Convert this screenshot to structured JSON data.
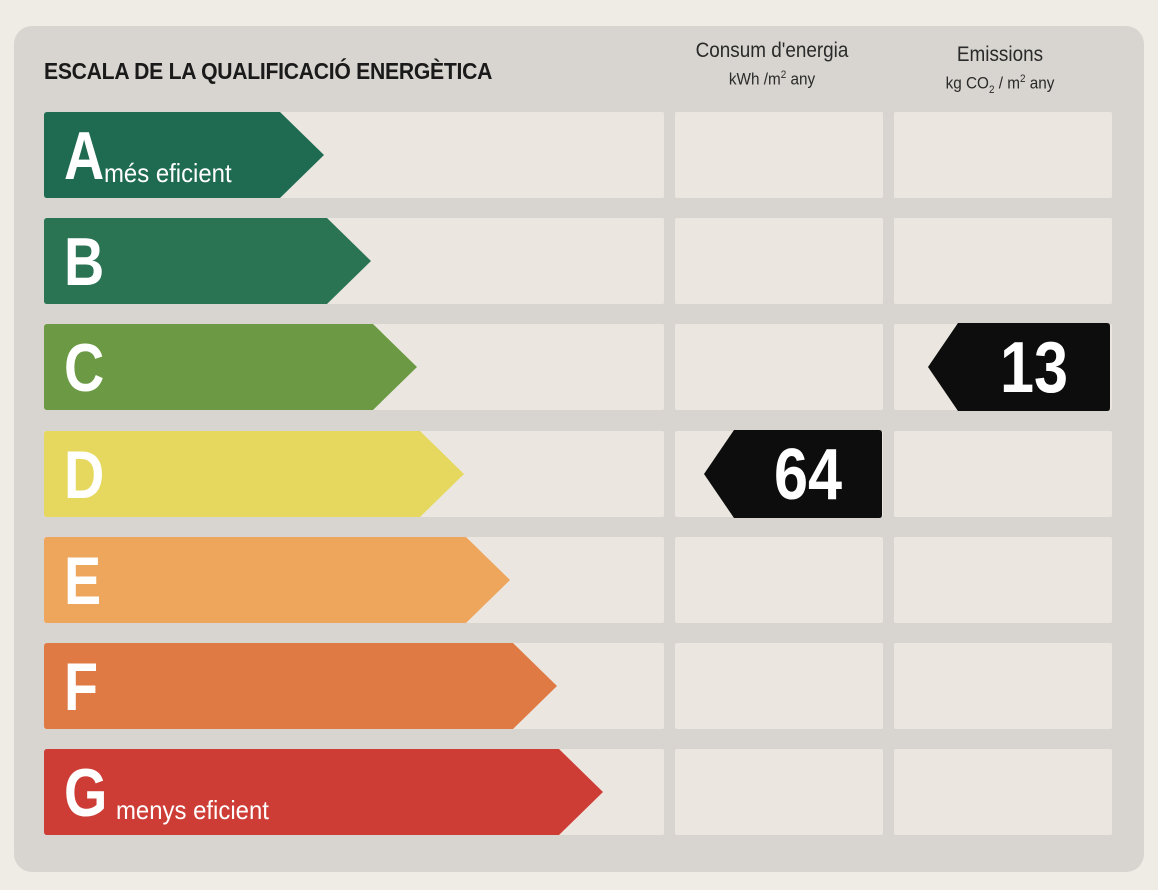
{
  "title": "ESCALA DE LA QUALIFICACIÓ ENERGÈTICA",
  "columns": {
    "energy": {
      "label": "Consum d'energia",
      "unit_prefix": "kWh /m",
      "unit_sup": "2",
      "unit_suffix": " any"
    },
    "emissions": {
      "label": "Emissions",
      "unit_prefix": "kg CO",
      "unit_sub": "2",
      "unit_mid": " / m",
      "unit_sup": "2",
      "unit_suffix": "  any"
    }
  },
  "bands": [
    {
      "letter": "A",
      "description": "més eficient",
      "color": "#1f6b52"
    },
    {
      "letter": "B",
      "description": "",
      "color": "#2a7353"
    },
    {
      "letter": "C",
      "description": "",
      "color": "#6c9a44"
    },
    {
      "letter": "D",
      "description": "",
      "color": "#e6d85e"
    },
    {
      "letter": "E",
      "description": "",
      "color": "#eea55c"
    },
    {
      "letter": "F",
      "description": "",
      "color": "#df7a45"
    },
    {
      "letter": "G",
      "description": "menys eficient",
      "color": "#cd3d36"
    }
  ],
  "ratings": {
    "energy": {
      "band": "D",
      "value": "64"
    },
    "emissions": {
      "band": "C",
      "value": "13"
    }
  },
  "marker_color": "#0d0d0d"
}
